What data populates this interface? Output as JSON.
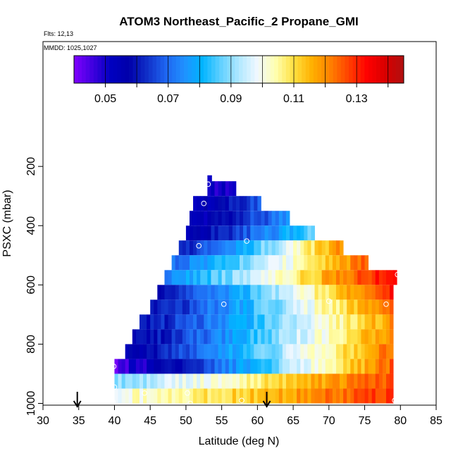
{
  "chart_data": {
    "type": "heatmap",
    "title": "ATOM3 Northeast_Pacific_2 Propane_GMI",
    "annotations": [
      "Flts: 12,13",
      "MMDD: 1025,1027"
    ],
    "xlabel": "Latitude (deg N)",
    "ylabel": "PSXC (mbar)",
    "xlim": [
      30,
      85
    ],
    "ylim": [
      1000,
      0
    ],
    "x_ticks": [
      30,
      35,
      40,
      45,
      50,
      55,
      60,
      65,
      70,
      75,
      80,
      85
    ],
    "y_ticks": [
      200,
      400,
      600,
      800,
      1000
    ],
    "colorbar": {
      "range": [
        0.04,
        0.145
      ],
      "tick_values": [
        0.05,
        0.07,
        0.09,
        0.11,
        0.13
      ],
      "tick_labels": [
        "0.05",
        "0.07",
        "0.09",
        "0.11",
        "0.13"
      ],
      "colors": [
        "#8000ff",
        "#4000e0",
        "#0000c0",
        "#0000aa",
        "#1030c8",
        "#1e64f0",
        "#2090ff",
        "#00b4ff",
        "#60d0ff",
        "#b0e8ff",
        "#f0f8ff",
        "#ffffb0",
        "#ffe040",
        "#ffb000",
        "#ff8000",
        "#ff4000",
        "#ff0000",
        "#d80000",
        "#b01010"
      ]
    },
    "level_bands": [
      {
        "p_top": 230,
        "p_bot": 250,
        "lat_start": 53.0,
        "lat_end": 53.6,
        "left": 0.05,
        "right": 0.05
      },
      {
        "p_top": 250,
        "p_bot": 300,
        "lat_start": 53.0,
        "lat_end": 57.0,
        "left": 0.05,
        "right": 0.052
      },
      {
        "p_top": 300,
        "p_bot": 350,
        "lat_start": 51.0,
        "lat_end": 60.5,
        "left": 0.052,
        "right": 0.068
      },
      {
        "p_top": 350,
        "p_bot": 400,
        "lat_start": 50.5,
        "lat_end": 64.5,
        "left": 0.052,
        "right": 0.075
      },
      {
        "p_top": 400,
        "p_bot": 450,
        "lat_start": 50.0,
        "lat_end": 68.0,
        "left": 0.055,
        "right": 0.088
      },
      {
        "p_top": 450,
        "p_bot": 500,
        "lat_start": 49.0,
        "lat_end": 72.0,
        "left": 0.06,
        "right": 0.122
      },
      {
        "p_top": 500,
        "p_bot": 550,
        "lat_start": 48.0,
        "lat_end": 75.5,
        "left": 0.07,
        "right": 0.126
      },
      {
        "p_top": 550,
        "p_bot": 600,
        "lat_start": 47.0,
        "lat_end": 79.5,
        "left": 0.075,
        "right": 0.138
      },
      {
        "p_top": 600,
        "p_bot": 650,
        "lat_start": 46.0,
        "lat_end": 79.0,
        "left": 0.058,
        "right": 0.134
      },
      {
        "p_top": 650,
        "p_bot": 700,
        "lat_start": 45.0,
        "lat_end": 79.0,
        "left": 0.058,
        "right": 0.126
      },
      {
        "p_top": 700,
        "p_bot": 750,
        "lat_start": 43.5,
        "lat_end": 79.0,
        "left": 0.058,
        "right": 0.12
      },
      {
        "p_top": 750,
        "p_bot": 800,
        "lat_start": 42.5,
        "lat_end": 79.0,
        "left": 0.056,
        "right": 0.122
      },
      {
        "p_top": 800,
        "p_bot": 850,
        "lat_start": 41.5,
        "lat_end": 79.0,
        "left": 0.055,
        "right": 0.124
      },
      {
        "p_top": 850,
        "p_bot": 900,
        "lat_start": 40.0,
        "lat_end": 79.0,
        "left": 0.045,
        "right": 0.126
      },
      {
        "p_top": 900,
        "p_bot": 950,
        "lat_start": 40.0,
        "lat_end": 79.0,
        "left": 0.09,
        "right": 0.128
      },
      {
        "p_top": 950,
        "p_bot": 1000,
        "lat_start": 40.0,
        "lat_end": 79.0,
        "left": 0.1,
        "right": 0.13
      }
    ],
    "points": [
      {
        "lat": 53.1,
        "p": 260
      },
      {
        "lat": 52.5,
        "p": 325
      },
      {
        "lat": 51.8,
        "p": 468
      },
      {
        "lat": 58.5,
        "p": 452
      },
      {
        "lat": 55.3,
        "p": 665
      },
      {
        "lat": 70.0,
        "p": 655
      },
      {
        "lat": 78.0,
        "p": 665
      },
      {
        "lat": 79.6,
        "p": 565
      },
      {
        "lat": 39.9,
        "p": 875
      },
      {
        "lat": 40.0,
        "p": 945
      },
      {
        "lat": 44.2,
        "p": 965
      },
      {
        "lat": 50.2,
        "p": 965
      },
      {
        "lat": 50.6,
        "p": 1000
      },
      {
        "lat": 57.8,
        "p": 990
      },
      {
        "lat": 79.2,
        "p": 990
      },
      {
        "lat": 39.8,
        "p": 995
      }
    ],
    "flight_arrows_lat": [
      34.8,
      61.3
    ]
  }
}
